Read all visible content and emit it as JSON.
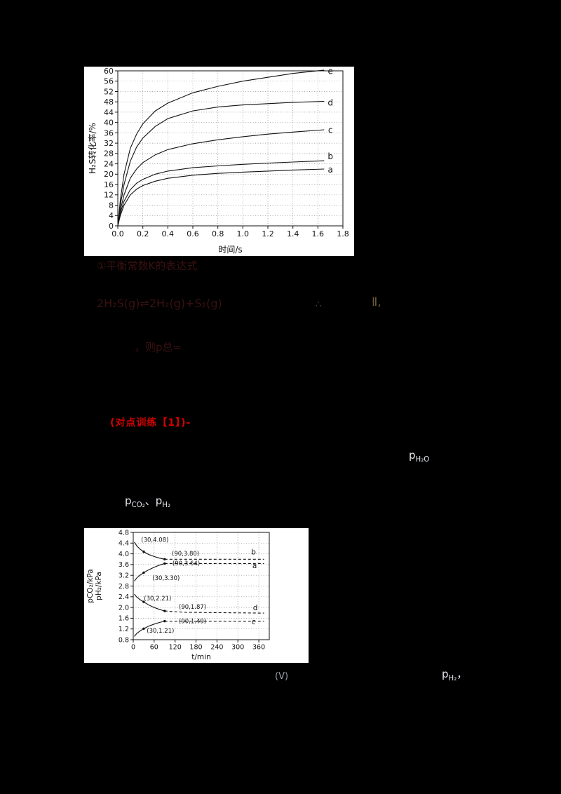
{
  "page": {
    "background": "#000000"
  },
  "colors": {
    "faint_text": "#3a1111",
    "red_heading": "#d40000",
    "light_text": "#e6e9f0",
    "chart_ink": "#111111",
    "chart_panel": "#ffffff"
  },
  "texts": {
    "faint_line1": "①平衡常数K的表达式",
    "faint_equation": "2H₂S(g)⇌2H₂(g)+S₂(g)",
    "faint_mark1": "∴",
    "faint_mark2": "Ⅱ,",
    "faint_line3": "，则p总=",
    "red_heading": "(对点训练【1】)-",
    "p_h2o": {
      "p": "p",
      "sub": "H₂O"
    },
    "p_co2_h2": {
      "p1": "p",
      "sub1": "CO₂",
      "sep": "、",
      "p2": "p",
      "sub2": "H₂"
    },
    "v_mark": "(Ⅴ)",
    "p_h2": {
      "p": "p",
      "sub": "H₂",
      "tail": "，"
    }
  },
  "chart_data": [
    {
      "type": "line",
      "title": "",
      "xlabel": "时间/s",
      "ylabel": "H₂S转化率/%",
      "xlim": [
        0,
        1.8
      ],
      "ylim": [
        0,
        60
      ],
      "grid": true,
      "legend_position": "none",
      "xticks": [
        0,
        0.2,
        0.4,
        0.6,
        0.8,
        1.0,
        1.2,
        1.4,
        1.6,
        1.8
      ],
      "xtick_labels": [
        "0.0",
        "0.2",
        "0.4",
        "0.6",
        "0.8",
        "1.0",
        "1.2",
        "1.4",
        "1.6",
        "1.8"
      ],
      "yticks": [
        0,
        4,
        8,
        12,
        16,
        20,
        24,
        28,
        32,
        36,
        40,
        44,
        48,
        52,
        56,
        60
      ],
      "ytick_labels": [
        "0",
        "4",
        "8",
        "12",
        "16",
        "20",
        "24",
        "28",
        "32",
        "36",
        "40",
        "44",
        "48",
        "52",
        "56",
        "60"
      ],
      "series": [
        {
          "name": "a",
          "dashed": false,
          "points": [
            [
              0,
              0
            ],
            [
              0.02,
              4
            ],
            [
              0.05,
              8
            ],
            [
              0.1,
              12
            ],
            [
              0.15,
              14.2
            ],
            [
              0.2,
              15.6
            ],
            [
              0.3,
              17.3
            ],
            [
              0.4,
              18.4
            ],
            [
              0.6,
              19.6
            ],
            [
              0.8,
              20.3
            ],
            [
              1.0,
              20.8
            ],
            [
              1.2,
              21.2
            ],
            [
              1.4,
              21.6
            ],
            [
              1.65,
              22
            ]
          ]
        },
        {
          "name": "b",
          "dashed": false,
          "points": [
            [
              0,
              0
            ],
            [
              0.02,
              5
            ],
            [
              0.05,
              9.5
            ],
            [
              0.1,
              14
            ],
            [
              0.15,
              16.5
            ],
            [
              0.2,
              18
            ],
            [
              0.3,
              20
            ],
            [
              0.4,
              21.2
            ],
            [
              0.6,
              22.5
            ],
            [
              0.8,
              23.2
            ],
            [
              1.0,
              23.8
            ],
            [
              1.2,
              24.3
            ],
            [
              1.4,
              24.7
            ],
            [
              1.65,
              25.2
            ]
          ]
        },
        {
          "name": "c",
          "dashed": false,
          "points": [
            [
              0,
              0
            ],
            [
              0.02,
              6
            ],
            [
              0.05,
              12
            ],
            [
              0.1,
              18.5
            ],
            [
              0.15,
              22
            ],
            [
              0.2,
              24.5
            ],
            [
              0.3,
              27.5
            ],
            [
              0.4,
              29.5
            ],
            [
              0.6,
              31.8
            ],
            [
              0.8,
              33.3
            ],
            [
              1.0,
              34.5
            ],
            [
              1.2,
              35.5
            ],
            [
              1.4,
              36.3
            ],
            [
              1.65,
              37.2
            ]
          ]
        },
        {
          "name": "d",
          "dashed": false,
          "points": [
            [
              0,
              0
            ],
            [
              0.02,
              8
            ],
            [
              0.05,
              16
            ],
            [
              0.1,
              25
            ],
            [
              0.15,
              30.5
            ],
            [
              0.2,
              34
            ],
            [
              0.3,
              38.5
            ],
            [
              0.4,
              41.5
            ],
            [
              0.6,
              44.5
            ],
            [
              0.8,
              46
            ],
            [
              1.0,
              46.8
            ],
            [
              1.2,
              47.3
            ],
            [
              1.4,
              47.8
            ],
            [
              1.65,
              48.2
            ]
          ]
        },
        {
          "name": "e",
          "dashed": false,
          "points": [
            [
              0,
              0
            ],
            [
              0.02,
              10
            ],
            [
              0.05,
              20
            ],
            [
              0.1,
              30
            ],
            [
              0.15,
              35.5
            ],
            [
              0.2,
              39.5
            ],
            [
              0.3,
              44.5
            ],
            [
              0.4,
              47.5
            ],
            [
              0.6,
              51.5
            ],
            [
              0.8,
              54
            ],
            [
              1.0,
              56
            ],
            [
              1.2,
              57.5
            ],
            [
              1.4,
              59
            ],
            [
              1.65,
              60.3
            ]
          ]
        }
      ],
      "annotations": [
        {
          "text": "e",
          "x": 1.7,
          "y": 58.8,
          "big": true
        },
        {
          "text": "d",
          "x": 1.7,
          "y": 46.5,
          "big": true
        },
        {
          "text": "c",
          "x": 1.7,
          "y": 36.0,
          "big": true
        },
        {
          "text": "b",
          "x": 1.7,
          "y": 25.8,
          "big": true
        },
        {
          "text": "a",
          "x": 1.7,
          "y": 20.6,
          "big": true
        }
      ],
      "points": []
    },
    {
      "type": "line",
      "title": "",
      "xlabel": "t/min",
      "ylabels": [
        "pCO₂/kPa",
        "pH₂/kPa"
      ],
      "xlim": [
        0,
        390
      ],
      "ylim": [
        0.8,
        4.8
      ],
      "grid": true,
      "legend_position": "none",
      "xticks": [
        0,
        60,
        120,
        180,
        240,
        300,
        360
      ],
      "xtick_labels": [
        "0",
        "60",
        "120",
        "180",
        "240",
        "300",
        "360"
      ],
      "yticks": [
        0.8,
        1.2,
        1.6,
        2.0,
        2.4,
        2.8,
        3.2,
        3.6,
        4.0,
        4.4,
        4.8
      ],
      "ytick_labels": [
        "0.8",
        "1.2",
        "1.6",
        "2.0",
        "2.4",
        "2.8",
        "3.2",
        "3.6",
        "4.0",
        "4.4",
        "4.8"
      ],
      "series": [
        {
          "name": "b-solid",
          "dashed": false,
          "points": [
            [
              3,
              4.44
            ],
            [
              10,
              4.3
            ],
            [
              20,
              4.17
            ],
            [
              30,
              4.08
            ],
            [
              45,
              3.97
            ],
            [
              60,
              3.9
            ],
            [
              75,
              3.84
            ],
            [
              90,
              3.8
            ]
          ]
        },
        {
          "name": "b-dashed",
          "dashed": true,
          "points": [
            [
              90,
              3.8
            ],
            [
              375,
              3.8
            ]
          ]
        },
        {
          "name": "a-solid",
          "dashed": false,
          "points": [
            [
              3,
              2.98
            ],
            [
              10,
              3.1
            ],
            [
              20,
              3.21
            ],
            [
              30,
              3.3
            ],
            [
              45,
              3.41
            ],
            [
              60,
              3.5
            ],
            [
              75,
              3.58
            ],
            [
              90,
              3.64
            ]
          ]
        },
        {
          "name": "a-dashed",
          "dashed": true,
          "points": [
            [
              90,
              3.64
            ],
            [
              375,
              3.64
            ]
          ]
        },
        {
          "name": "d-solid",
          "dashed": false,
          "points": [
            [
              3,
              2.5
            ],
            [
              10,
              2.39
            ],
            [
              20,
              2.29
            ],
            [
              30,
              2.21
            ],
            [
              45,
              2.09
            ],
            [
              60,
              2.0
            ],
            [
              75,
              1.93
            ],
            [
              90,
              1.87
            ]
          ]
        },
        {
          "name": "d-dashed",
          "dashed": true,
          "points": [
            [
              90,
              1.87
            ],
            [
              150,
              1.82
            ],
            [
              375,
              1.79
            ]
          ]
        },
        {
          "name": "c-solid",
          "dashed": false,
          "points": [
            [
              3,
              0.92
            ],
            [
              10,
              1.03
            ],
            [
              20,
              1.13
            ],
            [
              30,
              1.21
            ],
            [
              45,
              1.31
            ],
            [
              60,
              1.38
            ],
            [
              75,
              1.44
            ],
            [
              90,
              1.49
            ]
          ]
        },
        {
          "name": "c-dashed",
          "dashed": true,
          "points": [
            [
              90,
              1.49
            ],
            [
              375,
              1.49
            ]
          ]
        }
      ],
      "points": [
        [
          30,
          4.08
        ],
        [
          90,
          3.8
        ],
        [
          30,
          3.3
        ],
        [
          90,
          3.64
        ],
        [
          30,
          2.21
        ],
        [
          90,
          1.87
        ],
        [
          30,
          1.21
        ],
        [
          90,
          1.49
        ]
      ],
      "annotations": [
        {
          "text": "(30,4.08)",
          "x": 62,
          "y": 4.45
        },
        {
          "text": "(90,3.80)",
          "x": 150,
          "y": 3.94
        },
        {
          "text": "b",
          "x": 345,
          "y": 3.97,
          "big": true
        },
        {
          "text": "(90,3.64)",
          "x": 152,
          "y": 3.57
        },
        {
          "text": "a",
          "x": 348,
          "y": 3.47,
          "big": true
        },
        {
          "text": "(30,3.30)",
          "x": 94,
          "y": 3.02
        },
        {
          "text": "(30,2.21)",
          "x": 70,
          "y": 2.26
        },
        {
          "text": "(90,1.87)",
          "x": 170,
          "y": 1.95
        },
        {
          "text": "d",
          "x": 350,
          "y": 1.9,
          "big": true
        },
        {
          "text": "(90,1.49)",
          "x": 170,
          "y": 1.42
        },
        {
          "text": "c",
          "x": 345,
          "y": 1.38,
          "big": true
        },
        {
          "text": "(30,1.21)",
          "x": 78,
          "y": 1.06
        }
      ]
    }
  ]
}
